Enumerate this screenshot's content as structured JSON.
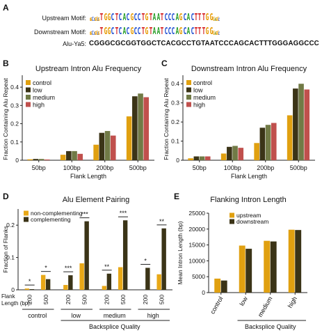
{
  "panel_labels": {
    "a": "A",
    "b": "B",
    "c": "C",
    "d": "D",
    "e": "E"
  },
  "panel_a": {
    "upstream_label": "Upstream Motif:",
    "downstream_label": "Downstream Motif:",
    "alu_label": "Alu-Ya5:",
    "upstream_motif": "GGCCGGCGTGGCTCACGCCTGTAATCCCAGCACTTTGGGAGGC",
    "downstream_motif": "GGCCGGCGTGGCTCACGCCTGTAATCCCAGCACTTTGGGAGGC",
    "alu_sequence": "CGGGCGCGGTGGCTCACGCCTGTAATCCCAGCACTTTGGGAGGCCC",
    "nucleotide_colors": {
      "A": "#2ca02c",
      "C": "#1f4fd1",
      "G": "#e69a00",
      "T": "#d62728"
    }
  },
  "colors": {
    "control": "#e0a010",
    "low": "#3b3417",
    "medium": "#717a46",
    "high": "#c0504d",
    "non_complementing": "#e8a817",
    "complementing": "#3b3417"
  },
  "chart_data": [
    {
      "id": "B",
      "type": "bar",
      "title": "Upstream Intron Alu Frequency",
      "xlabel": "Flank Length",
      "ylabel": "Fraction Containing Alu Repeat",
      "ylim": [
        0,
        0.45
      ],
      "yticks": [
        "0",
        "0.1",
        "0.2",
        "0.3",
        "0.4"
      ],
      "categories": [
        "50bp",
        "100bp",
        "200bp",
        "500bp"
      ],
      "series": [
        {
          "name": "control",
          "values": [
            0.005,
            0.03,
            0.085,
            0.24
          ]
        },
        {
          "name": "low",
          "values": [
            0.007,
            0.05,
            0.15,
            0.35
          ]
        },
        {
          "name": "medium",
          "values": [
            0.007,
            0.05,
            0.16,
            0.365
          ]
        },
        {
          "name": "high",
          "values": [
            0.004,
            0.035,
            0.135,
            0.345
          ]
        }
      ],
      "legend": "top-left"
    },
    {
      "id": "C",
      "type": "bar",
      "title": "Downstream Intron Alu Frequency",
      "xlabel": "Flank Length",
      "ylabel": "Fraction Containing Alu Repeat",
      "ylim": [
        0,
        0.43
      ],
      "yticks": [
        "0",
        "0.1",
        "0.2",
        "0.3",
        "0.4"
      ],
      "categories": [
        "50bp",
        "100bp",
        "200bp",
        "500bp"
      ],
      "series": [
        {
          "name": "control",
          "values": [
            0.01,
            0.035,
            0.09,
            0.235
          ]
        },
        {
          "name": "low",
          "values": [
            0.02,
            0.07,
            0.17,
            0.375
          ]
        },
        {
          "name": "medium",
          "values": [
            0.02,
            0.075,
            0.185,
            0.4
          ]
        },
        {
          "name": "high",
          "values": [
            0.02,
            0.065,
            0.195,
            0.37
          ]
        }
      ],
      "legend": "top-left"
    },
    {
      "id": "D",
      "type": "bar",
      "title": "Alu Element Pairing",
      "xlabel": "Backsplice Quality",
      "ylabel": "Fraction of Flanks",
      "flank_length_label": "Flank Length (bp):",
      "ylim": [
        0,
        0.25
      ],
      "yticks": [
        "0",
        "0.1",
        "0.2"
      ],
      "groups": [
        "control",
        "low",
        "medium",
        "high"
      ],
      "flank_lengths": [
        "200",
        "500"
      ],
      "series": [
        {
          "name": "non-complementing",
          "values": [
            [
              0.004,
              0.046
            ],
            [
              0.015,
              0.082
            ],
            [
              0.012,
              0.07
            ],
            [
              0.0,
              0.048
            ]
          ]
        },
        {
          "name": "complementing",
          "values": [
            [
              0.002,
              0.033
            ],
            [
              0.045,
              0.212
            ],
            [
              0.05,
              0.215
            ],
            [
              0.068,
              0.19
            ]
          ]
        }
      ],
      "significance": [
        [
          "*",
          "*"
        ],
        [
          "***",
          "***"
        ],
        [
          "**",
          "***"
        ],
        [
          "*",
          "**"
        ]
      ],
      "legend": "top-left"
    },
    {
      "id": "E",
      "type": "bar",
      "title": "Flanking Intron Length",
      "xlabel": "Backsplice Quality",
      "ylabel": "Mean Intron Length (bp)",
      "ylim": [
        0,
        25000
      ],
      "yticks": [
        "0",
        "5000",
        "10000",
        "15000",
        "20000",
        "25000"
      ],
      "categories": [
        "control",
        "low",
        "medium",
        "high"
      ],
      "series": [
        {
          "name": "upstream",
          "values": [
            4400,
            14800,
            16300,
            19800
          ]
        },
        {
          "name": "downstream",
          "values": [
            3800,
            13800,
            16100,
            19700
          ]
        }
      ],
      "legend": "top-left"
    }
  ]
}
